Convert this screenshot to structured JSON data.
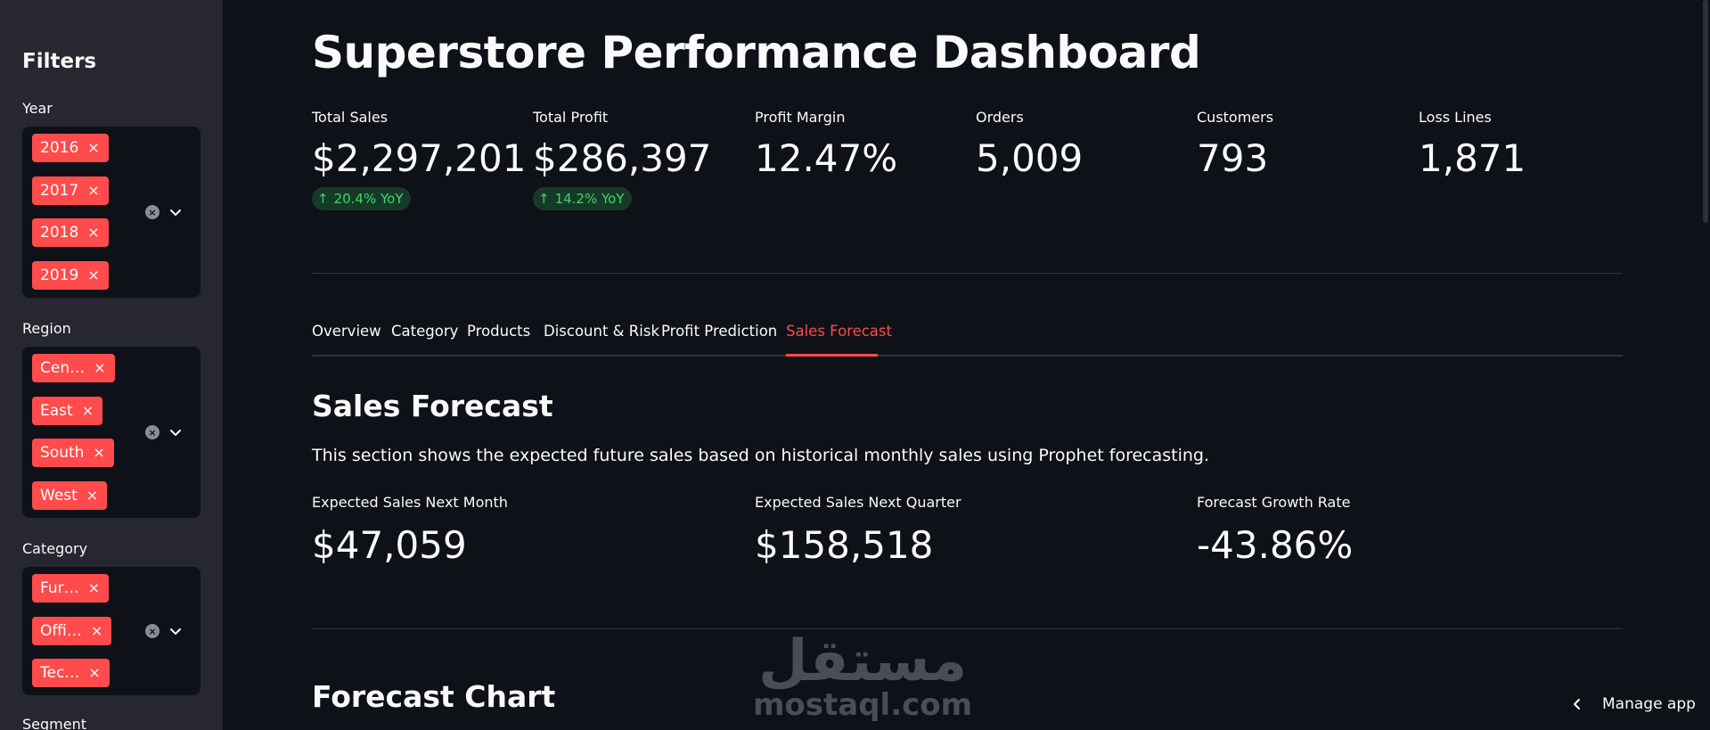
{
  "sidebar": {
    "title": "Filters",
    "filters": [
      {
        "label": "Year",
        "chips": [
          "2016",
          "2017",
          "2018",
          "2019"
        ]
      },
      {
        "label": "Region",
        "chips": [
          "Cen…",
          "East",
          "South",
          "West"
        ]
      },
      {
        "label": "Category",
        "chips": [
          "Fur…",
          "Offi…",
          "Tec…"
        ]
      },
      {
        "label": "Segment"
      }
    ],
    "chip_remove": "×",
    "clear_symbol": "×"
  },
  "header": {
    "title": "Superstore Performance Dashboard"
  },
  "kpis": [
    {
      "label": "Total Sales",
      "value": "$2,297,201",
      "delta": "20.4% YoY"
    },
    {
      "label": "Total Profit",
      "value": "$286,397",
      "delta": "14.2% YoY"
    },
    {
      "label": "Profit Margin",
      "value": "12.47%"
    },
    {
      "label": "Orders",
      "value": "5,009"
    },
    {
      "label": "Customers",
      "value": "793"
    },
    {
      "label": "Loss Lines",
      "value": "1,871"
    }
  ],
  "delta_arrow": "↑",
  "tabs": [
    {
      "label": "Overview"
    },
    {
      "label": "Category"
    },
    {
      "label": "Products"
    },
    {
      "label": "Discount & Risk"
    },
    {
      "label": "Profit Prediction"
    },
    {
      "label": "Sales Forecast",
      "active": true
    }
  ],
  "forecast": {
    "title": "Sales Forecast",
    "description": "This section shows the expected future sales based on historical monthly sales using Prophet forecasting.",
    "metrics": [
      {
        "label": "Expected Sales Next Month",
        "value": "$47,059"
      },
      {
        "label": "Expected Sales Next Quarter",
        "value": "$158,518"
      },
      {
        "label": "Forecast Growth Rate",
        "value": "-43.86%"
      }
    ],
    "chart_title": "Forecast Chart"
  },
  "watermark": {
    "arabic": "مستقل",
    "latin": "mostaql.com"
  },
  "footer": {
    "manage_app": "Manage app"
  },
  "colors": {
    "background": "#0e1117",
    "sidebar": "#262730",
    "accent": "#ff4b4b",
    "delta_positive": "#3dd56d",
    "delta_bg": "#173928"
  },
  "icons": [
    "close-icon",
    "chevron-down-icon",
    "arrow-up-icon",
    "chevron-left-icon"
  ]
}
